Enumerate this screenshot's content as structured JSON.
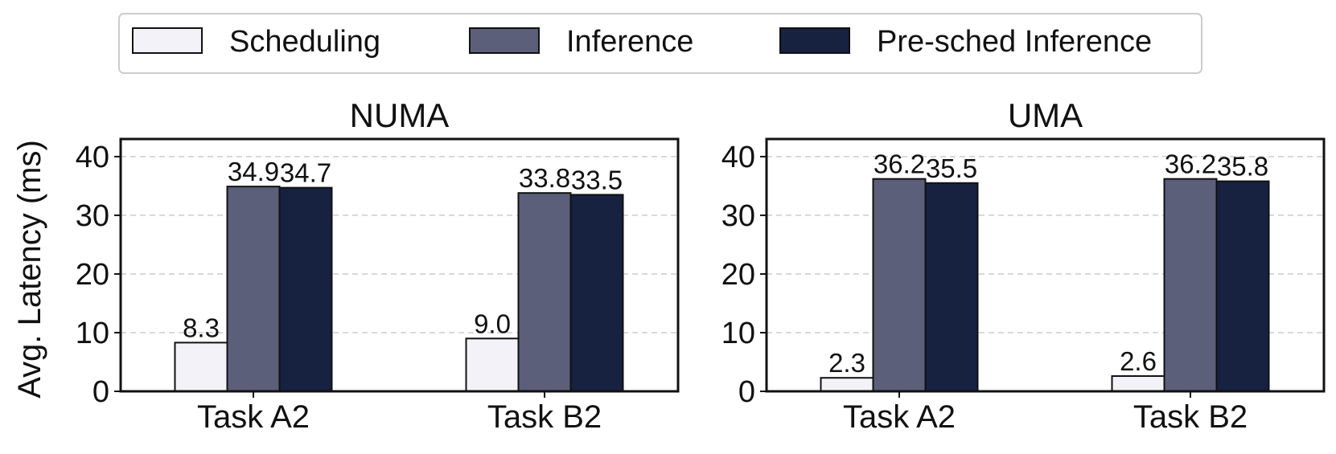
{
  "chart_data": {
    "type": "bar",
    "ylabel": "Avg. Latency (ms)",
    "ylim": [
      0,
      43
    ],
    "yticks": [
      0,
      10,
      20,
      30,
      40
    ],
    "grid": "horizontal dashed",
    "legend_placement": "top",
    "series": [
      {
        "name": "Scheduling",
        "color": "#f2f2f8"
      },
      {
        "name": "Inference",
        "color": "#5c5f7a"
      },
      {
        "name": "Pre-sched Inference",
        "color": "#172140"
      }
    ],
    "panels": [
      {
        "title": "NUMA",
        "categories": [
          "Task A2",
          "Task B2"
        ],
        "values": [
          [
            8.3,
            34.9,
            34.7
          ],
          [
            9.0,
            33.8,
            33.5
          ]
        ],
        "labels": [
          [
            "8.3",
            "34.9",
            "34.7"
          ],
          [
            "9.0",
            "33.8",
            "33.5"
          ]
        ]
      },
      {
        "title": "UMA",
        "categories": [
          "Task A2",
          "Task B2"
        ],
        "values": [
          [
            2.3,
            36.2,
            35.5
          ],
          [
            2.6,
            36.2,
            35.8
          ]
        ],
        "labels": [
          [
            "2.3",
            "36.2",
            "35.5"
          ],
          [
            "2.6",
            "36.2",
            "35.8"
          ]
        ]
      }
    ]
  }
}
